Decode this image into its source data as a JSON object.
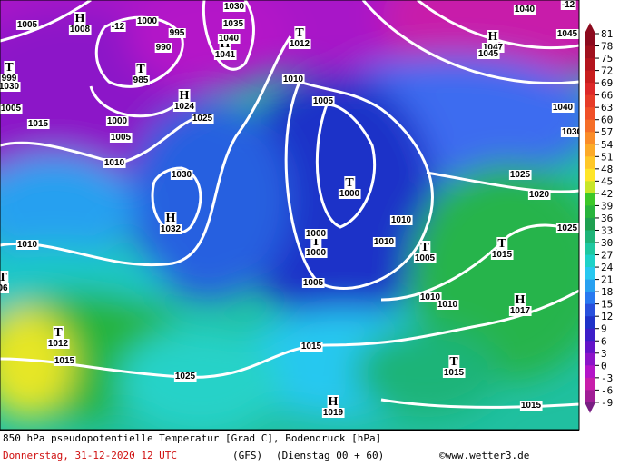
{
  "map": {
    "centers": [
      {
        "letter": "H",
        "value": "1008"
      },
      {
        "letter": "T",
        "value": "1012"
      },
      {
        "letter": "H",
        "value": "1047"
      },
      {
        "letter": "T",
        "value": "985"
      },
      {
        "letter": "H",
        "value": "1041"
      },
      {
        "letter": "H",
        "value": "1024"
      },
      {
        "letter": "T",
        "value": "999"
      },
      {
        "letter": "T",
        "value": "1000"
      },
      {
        "letter": "H",
        "value": "1032"
      },
      {
        "letter": "T",
        "value": "1000"
      },
      {
        "letter": "T",
        "value": "1005"
      },
      {
        "letter": "T",
        "value": "1015"
      },
      {
        "letter": "H",
        "value": "1017"
      },
      {
        "letter": "T",
        "value": "1012"
      },
      {
        "letter": "T",
        "value": "1015"
      },
      {
        "letter": "H",
        "value": "1019"
      },
      {
        "letter": "T",
        "value": "06"
      }
    ],
    "isobar_labels": [
      "1005",
      "1000",
      "995",
      "990",
      "1030",
      "1035",
      "1040",
      "1040",
      "1045",
      "1045",
      "-12",
      "-12",
      "1010",
      "1005",
      "1005",
      "1015",
      "1000",
      "1005",
      "1025",
      "1010",
      "1030",
      "1040",
      "1025",
      "1020",
      "1010",
      "1000",
      "1010",
      "1025",
      "1010",
      "1005",
      "1010",
      "1010",
      "1015",
      "1015",
      "1025",
      "1015",
      "1030",
      "1030"
    ]
  },
  "legend": {
    "ticks": [
      81,
      78,
      75,
      72,
      69,
      66,
      63,
      60,
      57,
      54,
      51,
      48,
      45,
      42,
      39,
      36,
      33,
      30,
      27,
      24,
      21,
      18,
      15,
      12,
      9,
      6,
      3,
      0,
      -3,
      -6,
      -9
    ],
    "colors": [
      "#8c0a1e",
      "#a0101e",
      "#b4141e",
      "#c81e1e",
      "#dc2828",
      "#e63c28",
      "#f05028",
      "#f56e28",
      "#fa8c28",
      "#fcaa28",
      "#ffc828",
      "#ffe628",
      "#c8e628",
      "#3cc828",
      "#28b43c",
      "#1ea050",
      "#1eb478",
      "#1ec8a0",
      "#1ed2c8",
      "#28c8f0",
      "#28a0f0",
      "#2878f0",
      "#2850dc",
      "#1e32c8",
      "#3c1ec8",
      "#6414c8",
      "#8c14c8",
      "#b414c8",
      "#c81eaa",
      "#a01e96",
      "#781e82"
    ]
  },
  "footer": {
    "description": "850 hPa pseudopotentielle Temperatur [Grad C], Bodendruck [hPa]",
    "date": "Donnerstag, 31-12-2020  12 UTC",
    "model": "(GFS)",
    "run": "(Dienstag 00 + 60)",
    "credit": "©www.wetter3.de"
  }
}
